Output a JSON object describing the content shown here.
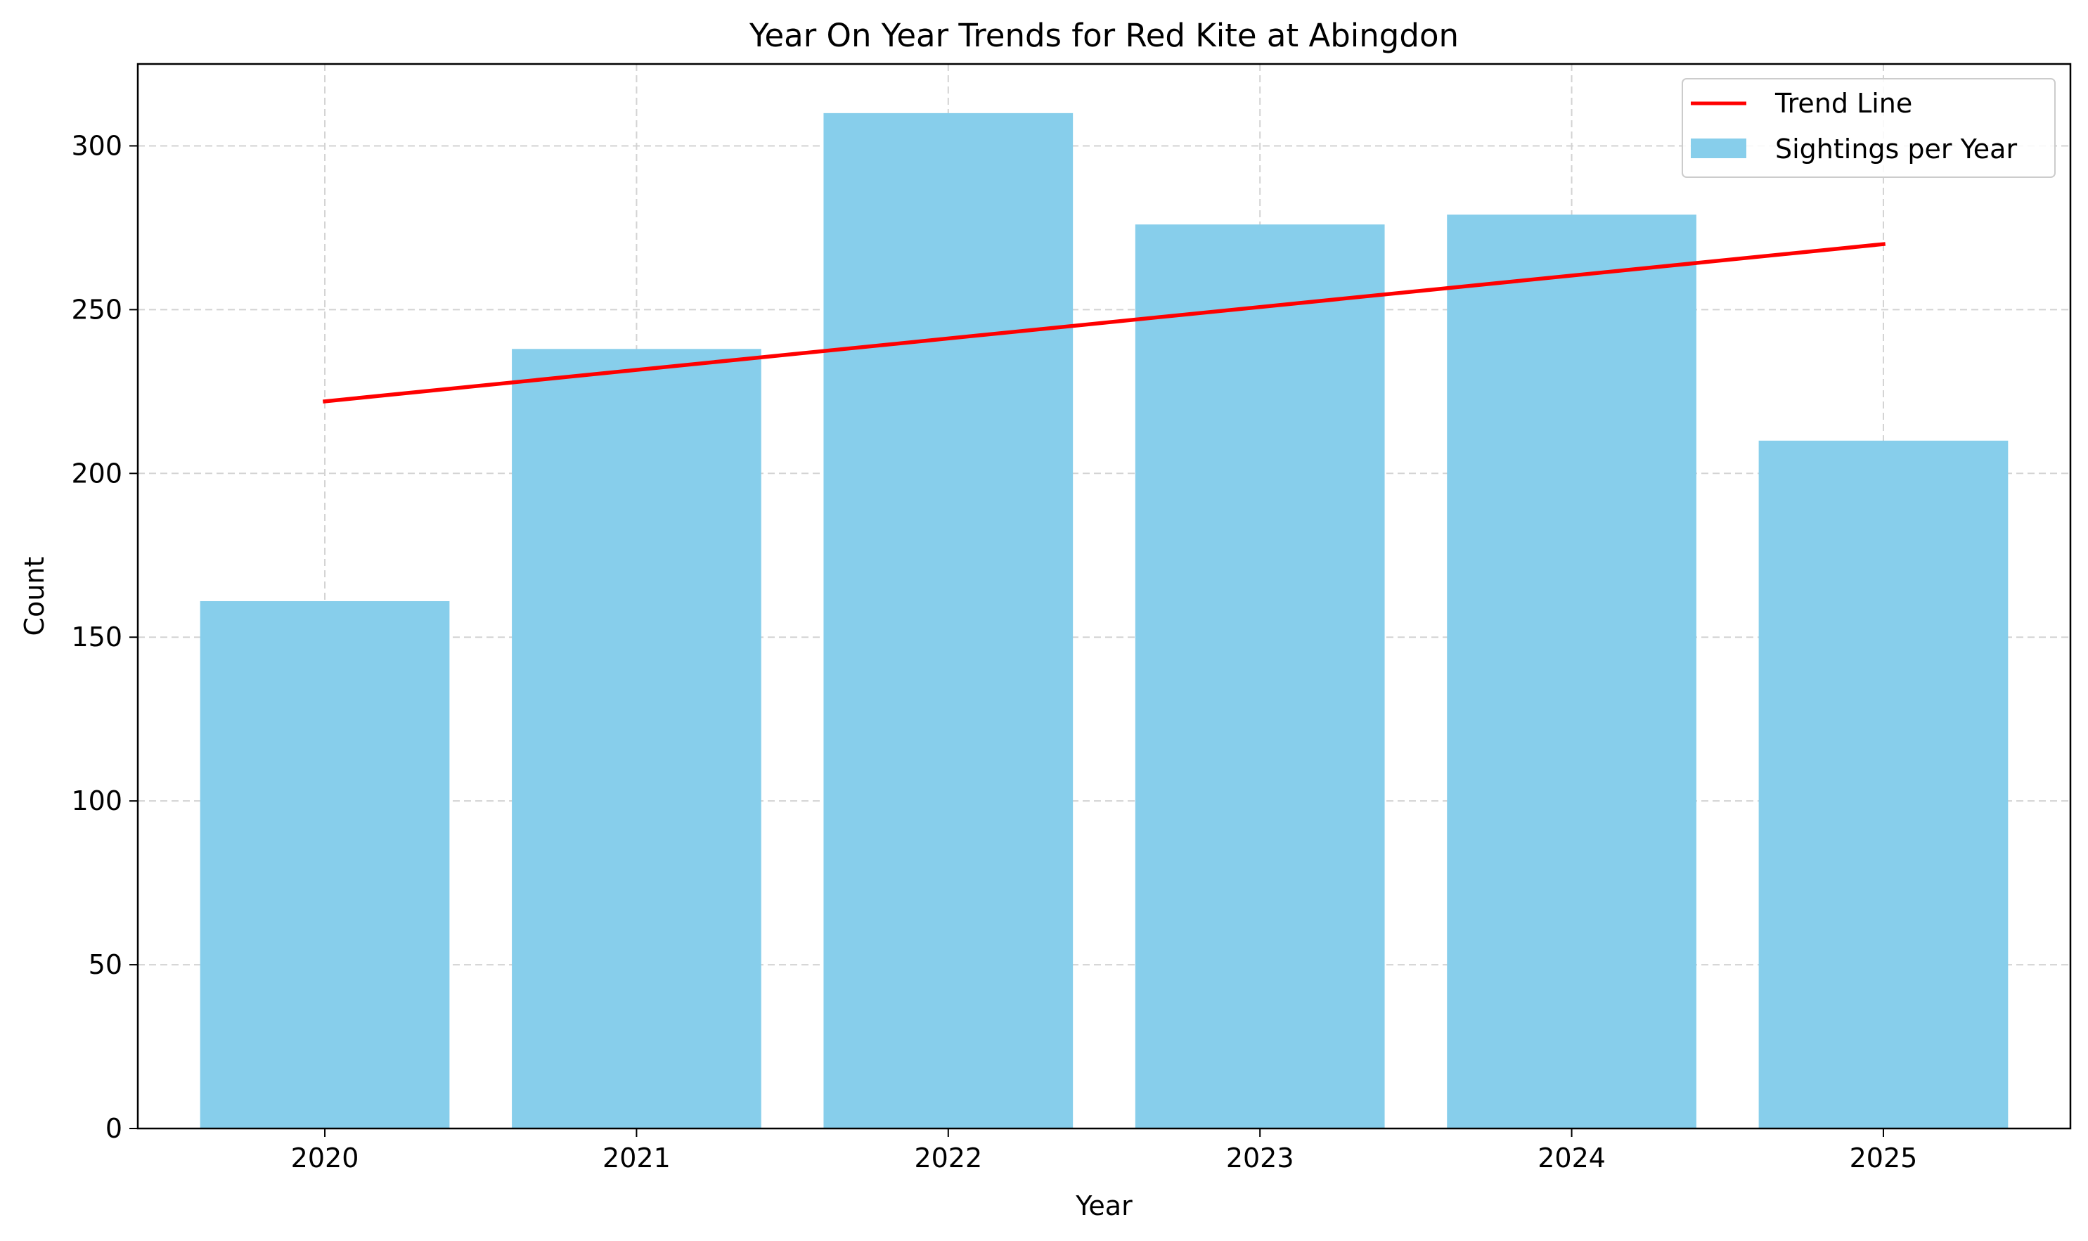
{
  "chart_data": {
    "type": "bar",
    "title": "Year On Year Trends for Red Kite at Abingdon",
    "xlabel": "Year",
    "ylabel": "Count",
    "categories": [
      "2020",
      "2021",
      "2022",
      "2023",
      "2024",
      "2025"
    ],
    "series": [
      {
        "name": "Sightings per Year",
        "type": "bar",
        "color": "#87CEEB",
        "values": [
          161,
          238,
          310,
          276,
          279,
          210
        ]
      },
      {
        "name": "Trend Line",
        "type": "line",
        "color": "#FF0000",
        "start": 222,
        "end": 270
      }
    ],
    "ylim": [
      0,
      325
    ],
    "yticks": [
      0,
      50,
      100,
      150,
      200,
      250,
      300
    ],
    "grid": true,
    "legend_position": "top-right"
  }
}
